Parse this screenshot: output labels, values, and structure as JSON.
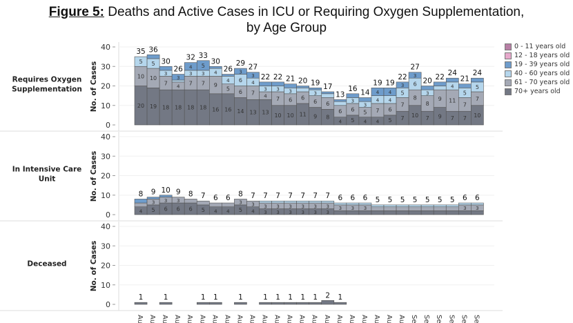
{
  "title": {
    "prefix": "Figure 5:",
    "text": " Deaths and Active Cases in ICU or Requiring Oxygen Supplementation,",
    "line2": "by Age Group"
  },
  "chart_data": {
    "type": "bar",
    "stacked": true,
    "ylabel": "No. of Cases",
    "ylim": [
      0,
      40
    ],
    "yticks": [
      0,
      10,
      20,
      30,
      40
    ],
    "grid": true,
    "legend_position": "right",
    "legend": [
      {
        "name": "0 - 11 years old",
        "color": "#b77fa5"
      },
      {
        "name": "12 - 18 years old",
        "color": "#e6a9cb"
      },
      {
        "name": "19 - 39 years old",
        "color": "#6e9ccb"
      },
      {
        "name": "40 - 60 years old",
        "color": "#b5d6ec"
      },
      {
        "name": "61 - 70 years old",
        "color": "#a4a9b5"
      },
      {
        "name": "70+ years old",
        "color": "#737884"
      }
    ],
    "categories": [
      "Aug",
      "Aug",
      "Aug",
      "Aug",
      "Aug",
      "Aug",
      "Aug",
      "Aug",
      "Aug",
      "Aug",
      "Aug",
      "Aug",
      "Aug",
      "Aug",
      "Aug",
      "Aug",
      "Aug",
      "Aug",
      "Aug",
      "Aug",
      "Aug",
      "Aug",
      "Sep",
      "Sep",
      "Sep",
      "Sep",
      "Sep",
      "Sep"
    ],
    "panels": [
      {
        "label": "Requires Oxygen Supplementation",
        "totals": [
          35,
          36,
          30,
          26,
          32,
          33,
          30,
          26,
          29,
          27,
          22,
          22,
          21,
          20,
          19,
          17,
          13,
          16,
          14,
          19,
          19,
          22,
          27,
          20,
          22,
          24,
          21,
          24
        ],
        "series": [
          {
            "name": "70+ years old",
            "values": [
              20,
              19,
              18,
              18,
              18,
              18,
              16,
              16,
              14,
              13,
              13,
              10,
              10,
              11,
              9,
              8,
              4,
              5,
              4,
              4,
              5,
              7,
              10,
              7,
              9,
              7,
              7,
              10
            ]
          },
          {
            "name": "61 - 70 years old",
            "values": [
              10,
              10,
              7,
              4,
              7,
              7,
              9,
              5,
              6,
              7,
              4,
              7,
              6,
              6,
              6,
              6,
              6,
              6,
              5,
              7,
              6,
              7,
              8,
              8,
              9,
              11,
              7,
              7
            ]
          },
          {
            "name": "40 - 60 years old",
            "values": [
              5,
              5,
              3,
              1,
              3,
              3,
              4,
              4,
              6,
              4,
              3,
              3,
              3,
              2,
              3,
              2,
              2,
              3,
              3,
              4,
              4,
              5,
              6,
              3,
              2,
              4,
              5,
              5
            ]
          },
          {
            "name": "19 - 39 years old",
            "values": [
              0,
              2,
              2,
              3,
              4,
              5,
              1,
              1,
              3,
              3,
              2,
              2,
              2,
              1,
              1,
              1,
              1,
              2,
              2,
              4,
              4,
              3,
              3,
              2,
              2,
              2,
              2,
              2
            ]
          }
        ]
      },
      {
        "label": "In Intensive Care Unit",
        "totals": [
          8,
          9,
          10,
          9,
          8,
          7,
          6,
          6,
          8,
          7,
          7,
          7,
          7,
          7,
          7,
          7,
          6,
          6,
          6,
          5,
          5,
          5,
          5,
          5,
          5,
          5,
          6,
          6
        ],
        "series": [
          {
            "name": "70+ years old",
            "values": [
              4,
              5,
              6,
              6,
              6,
              5,
              4,
              4,
              5,
              4,
              3,
              3,
              3,
              3,
              3,
              3,
              2,
              2,
              2,
              2,
              2,
              2,
              2,
              2,
              2,
              2,
              2,
              2
            ]
          },
          {
            "name": "61 - 70 years old",
            "values": [
              2,
              3,
              3,
              3,
              2,
              2,
              2,
              2,
              3,
              3,
              3,
              3,
              3,
              3,
              3,
              3,
              3,
              3,
              3,
              2,
              2,
              2,
              2,
              2,
              2,
              2,
              3,
              3
            ]
          },
          {
            "name": "40 - 60 years old",
            "values": [
              0,
              0,
              0,
              0,
              0,
              0,
              0,
              0,
              0,
              0,
              1,
              1,
              1,
              1,
              1,
              1,
              1,
              1,
              1,
              1,
              1,
              1,
              1,
              1,
              1,
              1,
              1,
              1
            ]
          },
          {
            "name": "19 - 39 years old",
            "values": [
              2,
              1,
              1,
              0,
              0,
              0,
              0,
              0,
              0,
              0,
              0,
              0,
              0,
              0,
              0,
              0,
              0,
              0,
              0,
              0,
              0,
              0,
              0,
              0,
              0,
              0,
              0,
              0
            ]
          }
        ]
      },
      {
        "label": "Deceased",
        "totals": [
          1,
          0,
          1,
          0,
          0,
          1,
          1,
          0,
          1,
          0,
          1,
          1,
          1,
          1,
          1,
          2,
          1,
          0,
          0,
          0,
          0,
          0,
          0,
          0,
          0,
          0,
          0,
          0
        ],
        "series": [
          {
            "name": "70+ years old",
            "values": [
              1,
              0,
              1,
              0,
              0,
              1,
              1,
              0,
              1,
              0,
              1,
              1,
              1,
              1,
              1,
              2,
              1,
              0,
              0,
              0,
              0,
              0,
              0,
              0,
              0,
              0,
              0,
              0
            ]
          }
        ]
      }
    ]
  }
}
